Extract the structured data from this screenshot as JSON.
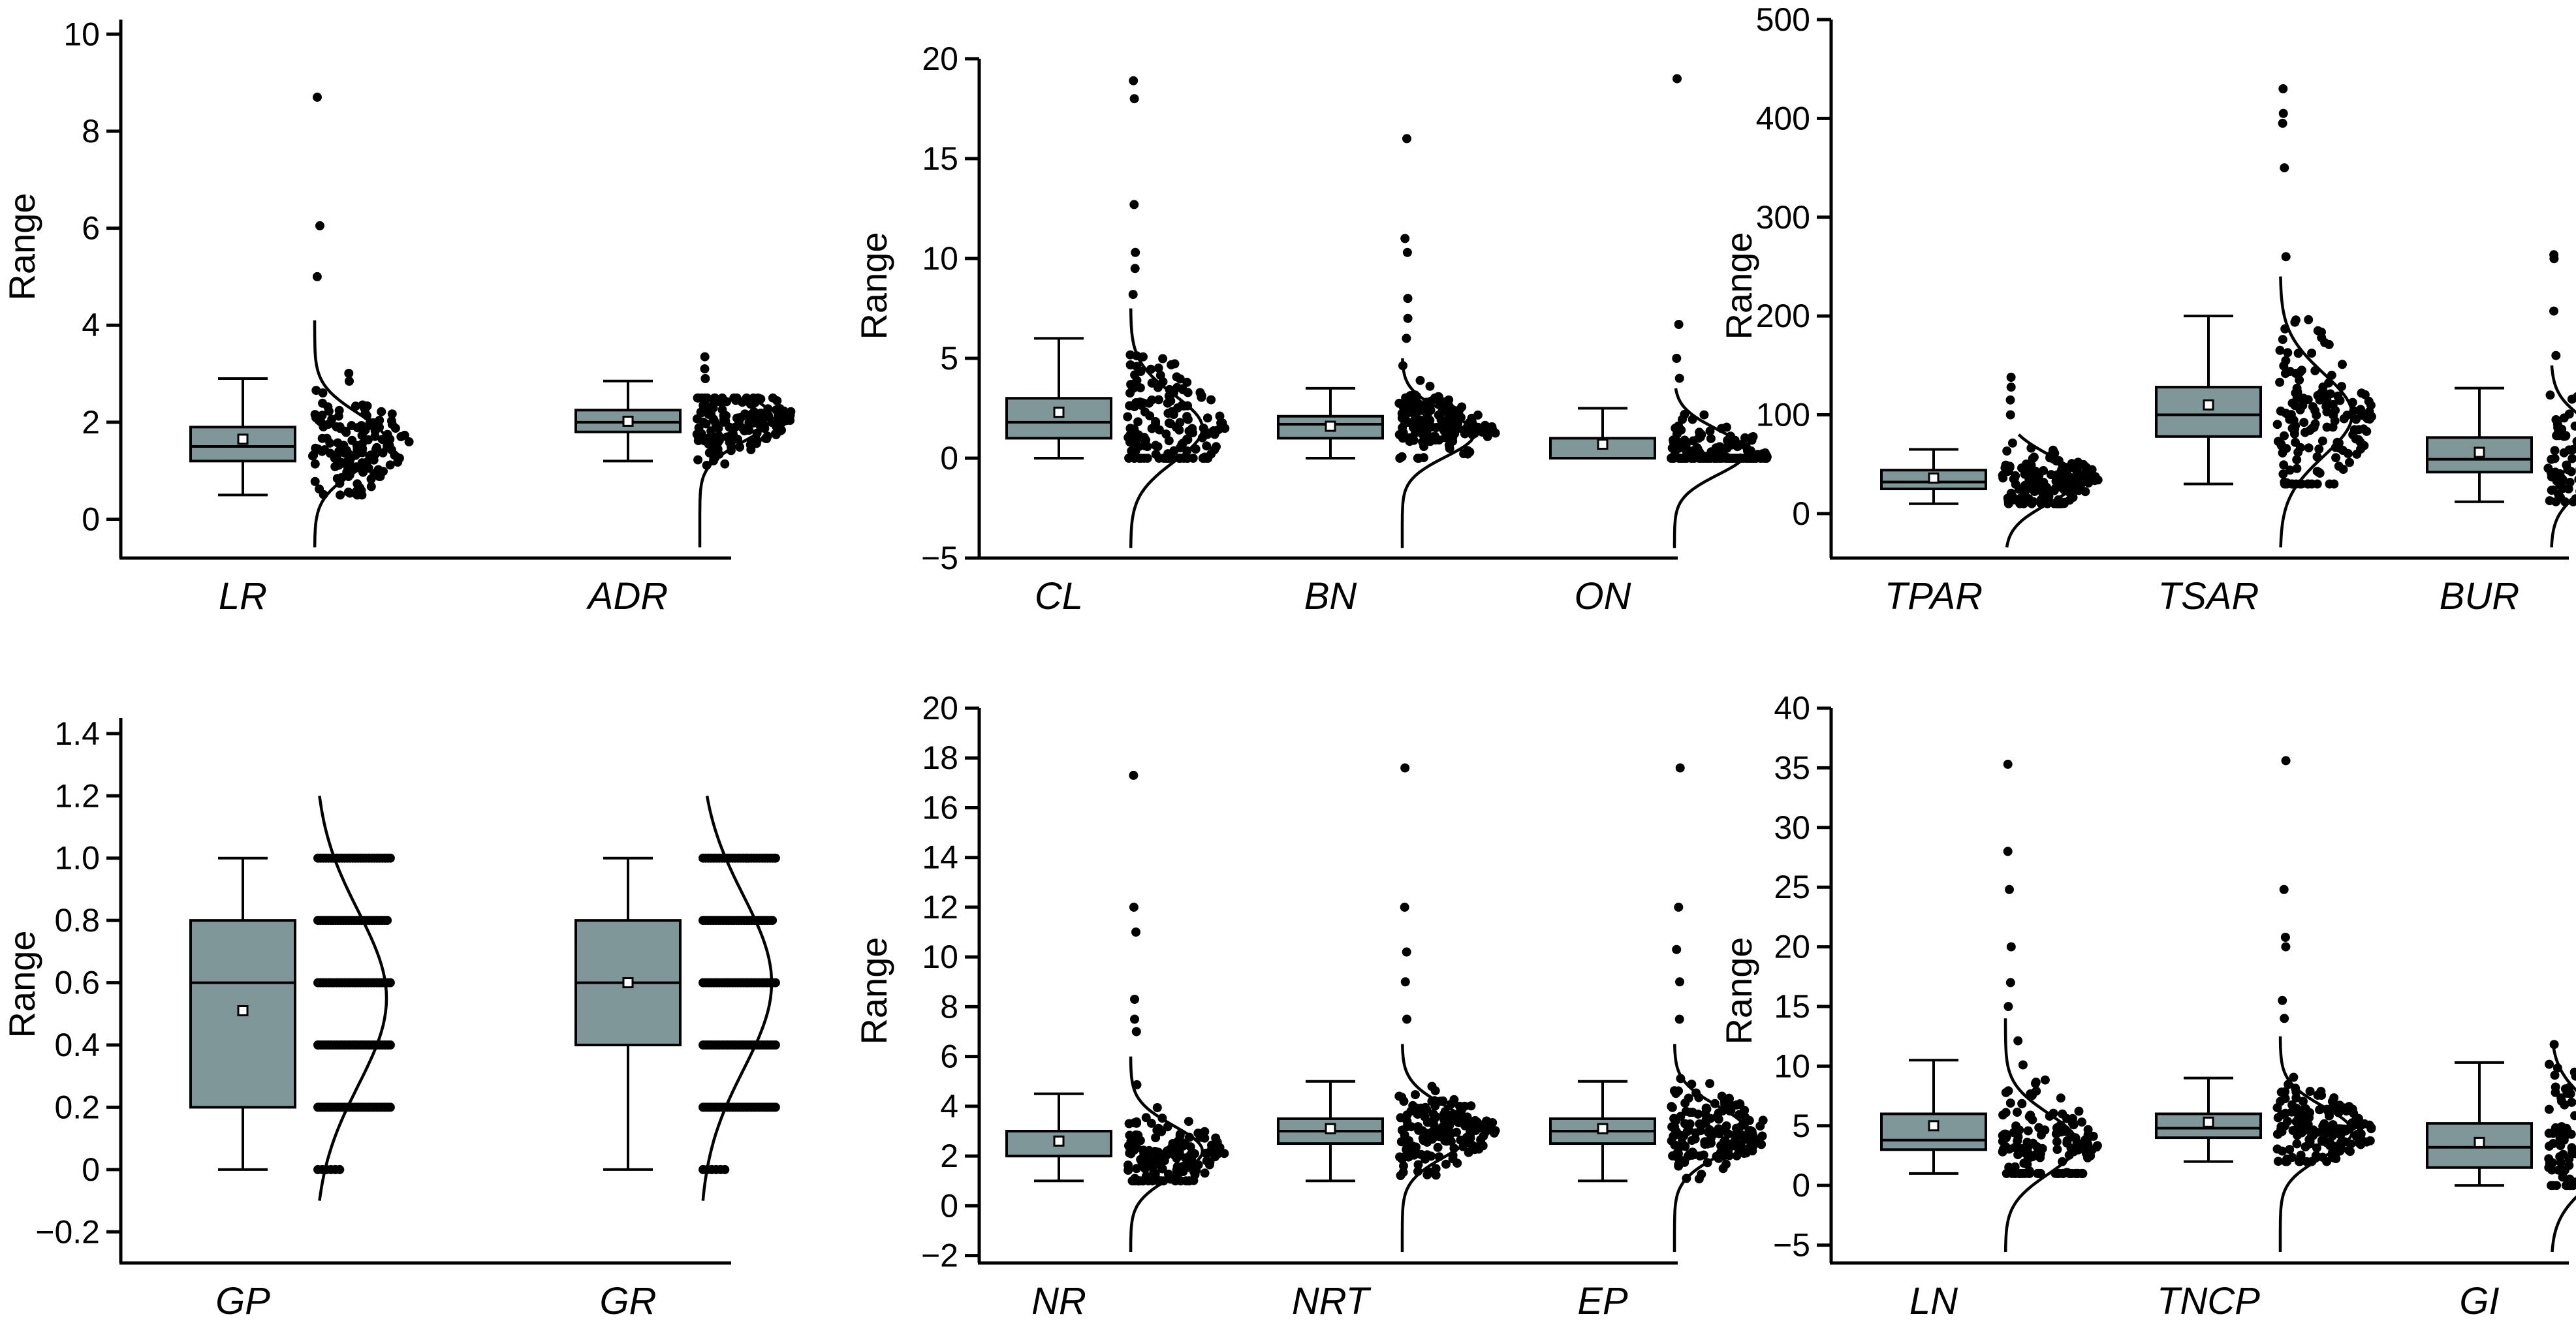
{
  "colors": {
    "box_fill": "#7f9799",
    "point": "#000000",
    "axis": "#000000"
  },
  "chart_data": [
    {
      "type": "box",
      "ylabel": "Range",
      "ylim": [
        -0.8,
        10.3
      ],
      "yticks": [
        0,
        2,
        4,
        6,
        8,
        10
      ],
      "series": [
        {
          "name": "LR",
          "q1": 1.2,
          "median": 1.5,
          "q3": 1.9,
          "whisker_low": 0.5,
          "whisker_high": 2.9,
          "mean": 1.65,
          "min": 0.5,
          "max": 4.1,
          "mode": 1.6,
          "outliers": [
            5.0,
            6.05,
            8.7
          ]
        },
        {
          "name": "ADR",
          "q1": 1.8,
          "median": 2.0,
          "q3": 2.25,
          "whisker_low": 1.2,
          "whisker_high": 2.85,
          "mean": 2.02,
          "min": 0.95,
          "max": 2.5,
          "mode": 2.1,
          "outliers": [
            2.9,
            3.1,
            3.35
          ]
        }
      ]
    },
    {
      "type": "box",
      "ylabel": "Range",
      "ylim": [
        -5,
        20
      ],
      "yticks": [
        -5,
        0,
        5,
        10,
        15,
        20
      ],
      "series": [
        {
          "name": "CL",
          "q1": 1.0,
          "median": 1.8,
          "q3": 3.0,
          "whisker_low": 0.0,
          "whisker_high": 6.0,
          "mean": 2.3,
          "min": 0,
          "max": 7.5,
          "mode": 1.5,
          "outliers": [
            8.2,
            9.5,
            10.3,
            12.7,
            18.0,
            18.9
          ]
        },
        {
          "name": "BN",
          "q1": 1.0,
          "median": 1.7,
          "q3": 2.1,
          "whisker_low": 0.0,
          "whisker_high": 3.5,
          "mean": 1.6,
          "min": 0,
          "max": 5.0,
          "mode": 1.2,
          "outliers": [
            6.0,
            7.0,
            8.0,
            10.3,
            11.0,
            16.0
          ]
        },
        {
          "name": "ON",
          "q1": 0.0,
          "median": 0.0,
          "q3": 1.0,
          "whisker_low": 0.0,
          "whisker_high": 2.5,
          "mean": 0.7,
          "min": 0,
          "max": 3.5,
          "mode": 0.3,
          "outliers": [
            4.0,
            5.0,
            6.7,
            19.0
          ]
        }
      ]
    },
    {
      "type": "box",
      "ylabel": "Range",
      "ylim": [
        -45,
        500
      ],
      "yticks": [
        0,
        100,
        200,
        300,
        400,
        500
      ],
      "series": [
        {
          "name": "TPAR",
          "q1": 25,
          "median": 32,
          "q3": 44,
          "whisker_low": 10,
          "whisker_high": 65,
          "mean": 36,
          "min": 10,
          "max": 80,
          "mode": 35,
          "outliers": [
            100,
            115,
            128,
            138
          ]
        },
        {
          "name": "TSAR",
          "q1": 78,
          "median": 100,
          "q3": 128,
          "whisker_low": 30,
          "whisker_high": 200,
          "mean": 110,
          "min": 30,
          "max": 240,
          "mode": 100,
          "outliers": [
            260,
            350,
            395,
            405,
            430
          ]
        },
        {
          "name": "BUR",
          "q1": 42,
          "median": 55,
          "q3": 77,
          "whisker_low": 12,
          "whisker_high": 127,
          "mean": 62,
          "min": 12,
          "max": 150,
          "mode": 60,
          "outliers": [
            160,
            205,
            258,
            262
          ]
        }
      ]
    },
    {
      "type": "box",
      "ylabel": "Range",
      "ylim": [
        -0.3,
        1.45
      ],
      "yticks": [
        -0.2,
        0,
        0.2,
        0.4,
        0.6,
        0.8,
        1.0,
        1.2,
        1.4
      ],
      "yticklabels": [
        "−0.2",
        "0",
        "0.2",
        "0.4",
        "0.6",
        "0.8",
        "1.0",
        "1.2",
        "1.4"
      ],
      "series": [
        {
          "name": "GP",
          "q1": 0.2,
          "median": 0.6,
          "q3": 0.8,
          "whisker_low": 0.0,
          "whisker_high": 1.0,
          "mean": 0.51,
          "levels": [
            0,
            0.2,
            0.4,
            0.6,
            0.8,
            1.0
          ],
          "mode": 0.55,
          "outliers": []
        },
        {
          "name": "GR",
          "q1": 0.4,
          "median": 0.6,
          "q3": 0.8,
          "whisker_low": 0.0,
          "whisker_high": 1.0,
          "mean": 0.6,
          "levels": [
            0,
            0.2,
            0.4,
            0.6,
            0.8,
            1.0
          ],
          "mode": 0.6,
          "outliers": []
        }
      ]
    },
    {
      "type": "box",
      "ylabel": "Range",
      "ylim": [
        -2.3,
        20
      ],
      "yticks": [
        -2,
        0,
        2,
        4,
        6,
        8,
        10,
        12,
        14,
        16,
        18,
        20
      ],
      "series": [
        {
          "name": "NR",
          "q1": 2.0,
          "median": 2.0,
          "q3": 3.0,
          "whisker_low": 1.0,
          "whisker_high": 4.5,
          "mean": 2.6,
          "min": 1,
          "max": 6.0,
          "mode": 2.2,
          "outliers": [
            7.0,
            7.5,
            8.3,
            11.0,
            12.0,
            17.3
          ]
        },
        {
          "name": "NRT",
          "q1": 2.5,
          "median": 3.0,
          "q3": 3.5,
          "whisker_low": 1.0,
          "whisker_high": 5.0,
          "mean": 3.1,
          "min": 1,
          "max": 6.5,
          "mode": 3.0,
          "outliers": [
            7.5,
            9.0,
            10.2,
            12.0,
            17.6
          ]
        },
        {
          "name": "EP",
          "q1": 2.5,
          "median": 3.0,
          "q3": 3.5,
          "whisker_low": 1.0,
          "whisker_high": 5.0,
          "mean": 3.1,
          "min": 1,
          "max": 6.5,
          "mode": 3.0,
          "outliers": [
            7.5,
            9.0,
            10.3,
            12.0,
            17.6
          ]
        }
      ]
    },
    {
      "type": "box",
      "ylabel": "Range",
      "ylim": [
        -6.5,
        40
      ],
      "yticks": [
        -5,
        0,
        5,
        10,
        15,
        20,
        25,
        30,
        35,
        40
      ],
      "series": [
        {
          "name": "LN",
          "q1": 3.0,
          "median": 3.8,
          "q3": 6.0,
          "whisker_low": 1.0,
          "whisker_high": 10.5,
          "mean": 5.0,
          "min": 1,
          "max": 14.0,
          "mode": 3.5,
          "outliers": [
            15.0,
            17.0,
            20.0,
            24.8,
            28.0,
            35.3
          ]
        },
        {
          "name": "TNCP",
          "q1": 4.0,
          "median": 4.8,
          "q3": 6.0,
          "whisker_low": 2.0,
          "whisker_high": 9.0,
          "mean": 5.3,
          "min": 2,
          "max": 12.5,
          "mode": 4.5,
          "outliers": [
            14.0,
            15.5,
            20.0,
            20.8,
            24.8,
            35.6
          ]
        },
        {
          "name": "GI",
          "q1": 1.5,
          "median": 3.2,
          "q3": 5.2,
          "whisker_low": 0.0,
          "whisker_high": 10.3,
          "mean": 3.6,
          "min": 0,
          "max": 12.0,
          "mode": 3.5,
          "outliers": []
        }
      ]
    }
  ]
}
